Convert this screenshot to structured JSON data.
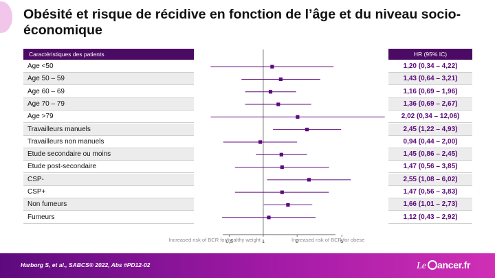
{
  "title": "Obésité et risque de récidive en fonction de l’âge et du niveau socio-économique",
  "table_header": {
    "characteristics": "Caractéristiques des patients",
    "hr": "HR (95% IC)"
  },
  "footer": {
    "citation": "Harborg S, et al., SABCS® 2022, Abs #PD12-02",
    "logo_part1": "Le",
    "logo_part2": "ancer.fr"
  },
  "colors": {
    "accent": "#5a0a78",
    "header": "#4b0a63",
    "marker": "#5e0a7e"
  },
  "chart_data": {
    "type": "forest",
    "x_scale": "log",
    "xlim": [
      0.27,
      13
    ],
    "reference_line": 1,
    "x_ticks": [
      {
        "value": 0.5,
        "label": "0,5"
      },
      {
        "value": 1,
        "label": "1"
      },
      {
        "value": 2,
        "label": "2"
      },
      {
        "value": 5,
        "label": "5"
      }
    ],
    "xlabel_left": "Increased risk of BCR for healthy weight",
    "xlabel_right": "Increased risk of BCR for obese",
    "rows": [
      {
        "label": "Age <50",
        "hr": 1.2,
        "low": 0.34,
        "high": 4.22,
        "text": "1,20 (0,34 – 4,22)"
      },
      {
        "label": "Age 50 – 59",
        "hr": 1.43,
        "low": 0.64,
        "high": 3.21,
        "text": "1,43 (0,64 – 3,21)"
      },
      {
        "label": "Age 60 – 69",
        "hr": 1.16,
        "low": 0.69,
        "high": 1.96,
        "text": "1,16 (0,69 – 1,96)"
      },
      {
        "label": "Age 70 – 79",
        "hr": 1.36,
        "low": 0.69,
        "high": 2.67,
        "text": "1,36 (0,69 – 2,67)"
      },
      {
        "label": "Age >79",
        "hr": 2.02,
        "low": 0.34,
        "high": 12.06,
        "text": "2,02 (0,34 – 12,06)"
      },
      {
        "label": "Travailleurs manuels",
        "hr": 2.45,
        "low": 1.22,
        "high": 4.93,
        "text": "2,45 (1,22 – 4,93)"
      },
      {
        "label": "Travailleurs non manuels",
        "hr": 0.94,
        "low": 0.44,
        "high": 2.0,
        "text": "0,94 (0,44 – 2,00)"
      },
      {
        "label": "Etude secondaire ou moins",
        "hr": 1.45,
        "low": 0.86,
        "high": 2.45,
        "text": "1,45 (0,86 – 2,45)"
      },
      {
        "label": "Etude post-secondaire",
        "hr": 1.47,
        "low": 0.56,
        "high": 3.85,
        "text": "1,47 (0,56 – 3,85)"
      },
      {
        "label": "CSP-",
        "hr": 2.55,
        "low": 1.08,
        "high": 6.02,
        "text": "2,55 (1,08 – 6,02)"
      },
      {
        "label": "CSP+",
        "hr": 1.47,
        "low": 0.56,
        "high": 3.83,
        "text": "1,47 (0,56 – 3,83)"
      },
      {
        "label": "Non fumeurs",
        "hr": 1.66,
        "low": 1.01,
        "high": 2.73,
        "text": "1,66 (1,01 – 2,73)"
      },
      {
        "label": "Fumeurs",
        "hr": 1.12,
        "low": 0.43,
        "high": 2.92,
        "text": "1,12 (0,43 – 2,92)"
      }
    ]
  }
}
